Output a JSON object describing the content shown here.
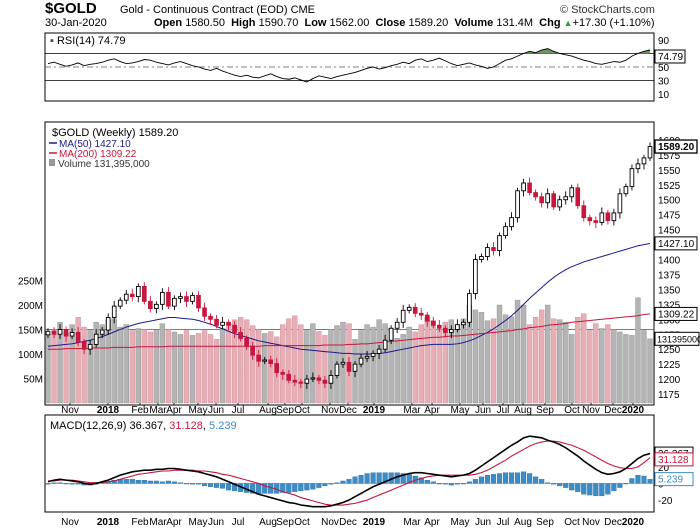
{
  "header": {
    "symbol": "$GOLD",
    "name": "Gold - Continuous Contract (EOD) CME",
    "copyright": "© StockCharts.com",
    "date": "30-Jan-2020",
    "open_label": "Open",
    "open": "1580.50",
    "high_label": "High",
    "high": "1590.70",
    "low_label": "Low",
    "low": "1562.00",
    "close_label": "Close",
    "close": "1589.20",
    "volume_label": "Volume",
    "volume": "131.4M",
    "chg_label": "Chg",
    "chg": "+17.30 (+1.10%)",
    "chg_arrow": "▲"
  },
  "rsi_panel": {
    "legend": "RSI(14) 74.79",
    "last_value_label": "74.79",
    "y_ticks": [
      "90",
      "70",
      "50",
      "30",
      "10"
    ]
  },
  "price_panel": {
    "legend_main": "$GOLD (Weekly) 1589.20",
    "legend_ma50": "MA(50) 1427.10",
    "legend_ma200": "MA(200) 1309.22",
    "legend_volume": "Volume 131,395,000",
    "y_ticks": [
      "1600",
      "1575",
      "1550",
      "1525",
      "1500",
      "1475",
      "1450",
      "1425",
      "1400",
      "1375",
      "1350",
      "1325",
      "1300",
      "1275",
      "1250",
      "1225",
      "1200",
      "1175"
    ],
    "volume_ticks": [
      "250M",
      "200M",
      "150M",
      "100M",
      "50M"
    ],
    "last_price_label": "1589.20",
    "ma50_label": "1427.10",
    "ma200_label": "1309.22",
    "volume_label": "131395000"
  },
  "macd_panel": {
    "legend_prefix": "MACD(12,26,9)",
    "legend_macd": "36.367",
    "legend_signal": "31.128",
    "legend_hist": "5.239",
    "macd_label": "36.367",
    "signal_label": "31.128",
    "hist_label": "5.239",
    "y_ticks": [
      "40",
      "20",
      "0",
      "-20"
    ]
  },
  "x_axis": {
    "labels": [
      "Nov",
      "2018",
      "Feb",
      "Mar",
      "Apr",
      "May",
      "Jun",
      "Jul",
      "Aug",
      "Sep",
      "Oct",
      "Nov",
      "Dec",
      "2019",
      "Mar",
      "Apr",
      "May",
      "Jun",
      "Jul",
      "Aug",
      "Sep",
      "Oct",
      "Nov",
      "Dec",
      "2020"
    ]
  },
  "colors": {
    "up": "#000000",
    "down": "#c8163e",
    "ma50": "#1a1a8c",
    "ma200": "#c8163e",
    "rsi_fill": "#5a8f4e",
    "macd_hist": "#3a8dc8",
    "vol_up": "#b4b4b4",
    "vol_down": "#e8aeb6"
  },
  "chart_data": [
    {
      "type": "line",
      "title": "RSI(14)",
      "ylim": [
        0,
        100
      ],
      "series": [
        {
          "name": "RSI(14)",
          "values": [
            55,
            57,
            54,
            51,
            53,
            56,
            52,
            54,
            55,
            57,
            60,
            62,
            58,
            55,
            56,
            58,
            61,
            60,
            57,
            55,
            53,
            56,
            58,
            55,
            52,
            50,
            47,
            45,
            48,
            44,
            41,
            38,
            36,
            38,
            35,
            34,
            37,
            40,
            36,
            33,
            32,
            34,
            31,
            28,
            33,
            37,
            35,
            33,
            36,
            38,
            40,
            42,
            45,
            48,
            50,
            47,
            49,
            52,
            54,
            57,
            55,
            60,
            62,
            58,
            60,
            63,
            59,
            55,
            52,
            54,
            56,
            53,
            51,
            48,
            50,
            55,
            60,
            62,
            66,
            70,
            73,
            71,
            75,
            77,
            73,
            70,
            68,
            66,
            63,
            60,
            58,
            55,
            54,
            56,
            58,
            57,
            60,
            66,
            70,
            73,
            75
          ]
        }
      ]
    },
    {
      "type": "line",
      "title": "$GOLD (Weekly)",
      "ylim": [
        1160,
        1620
      ],
      "series": [
        {
          "name": "Close",
          "values": [
            1280,
            1275,
            1283,
            1272,
            1278,
            1262,
            1250,
            1258,
            1275,
            1282,
            1303,
            1322,
            1332,
            1342,
            1338,
            1355,
            1330,
            1318,
            1325,
            1345,
            1322,
            1335,
            1338,
            1330,
            1340,
            1319,
            1305,
            1300,
            1290,
            1295,
            1290,
            1278,
            1268,
            1255,
            1240,
            1230,
            1232,
            1226,
            1211,
            1208,
            1198,
            1195,
            1193,
            1200,
            1202,
            1198,
            1193,
            1206,
            1225,
            1228,
            1213,
            1225,
            1235,
            1238,
            1243,
            1250,
            1265,
            1285,
            1295,
            1315,
            1320,
            1310,
            1307,
            1297,
            1290,
            1285,
            1278,
            1283,
            1291,
            1295,
            1343,
            1400,
            1405,
            1420,
            1415,
            1440,
            1455,
            1470,
            1515,
            1528,
            1512,
            1505,
            1495,
            1510,
            1488,
            1500,
            1505,
            1520,
            1490,
            1470,
            1465,
            1462,
            1478,
            1465,
            1478,
            1510,
            1522,
            1552,
            1560,
            1570,
            1589
          ]
        },
        {
          "name": "MA(50)",
          "values": [
            1255,
            1256,
            1257,
            1258,
            1259,
            1261,
            1263,
            1265,
            1268,
            1271,
            1275,
            1279,
            1283,
            1287,
            1290,
            1293,
            1295,
            1297,
            1299,
            1301,
            1303,
            1303,
            1302,
            1301,
            1300,
            1298,
            1295,
            1292,
            1288,
            1284,
            1280,
            1276,
            1273,
            1270,
            1267,
            1264,
            1262,
            1260,
            1258,
            1256,
            1254,
            1252,
            1250,
            1249,
            1248,
            1247,
            1246,
            1245,
            1244,
            1243,
            1243,
            1242,
            1242,
            1242,
            1242,
            1243,
            1244,
            1246,
            1248,
            1250,
            1252,
            1254,
            1256,
            1257,
            1258,
            1258,
            1258,
            1258,
            1259,
            1261,
            1264,
            1268,
            1273,
            1278,
            1284,
            1291,
            1298,
            1306,
            1315,
            1325,
            1335,
            1344,
            1353,
            1362,
            1370,
            1377,
            1383,
            1388,
            1392,
            1396,
            1399,
            1402,
            1405,
            1408,
            1411,
            1414,
            1417,
            1420,
            1423,
            1425,
            1427
          ]
        },
        {
          "name": "MA(200)",
          "values": [
            1250,
            1250,
            1250,
            1251,
            1251,
            1251,
            1251,
            1252,
            1252,
            1252,
            1252,
            1253,
            1253,
            1253,
            1253,
            1254,
            1254,
            1254,
            1254,
            1254,
            1255,
            1255,
            1255,
            1255,
            1255,
            1255,
            1255,
            1255,
            1255,
            1255,
            1255,
            1255,
            1255,
            1255,
            1255,
            1255,
            1256,
            1256,
            1256,
            1256,
            1256,
            1256,
            1256,
            1256,
            1256,
            1256,
            1257,
            1257,
            1257,
            1257,
            1258,
            1258,
            1259,
            1259,
            1260,
            1261,
            1262,
            1263,
            1264,
            1265,
            1266,
            1267,
            1268,
            1269,
            1270,
            1270,
            1271,
            1272,
            1272,
            1273,
            1274,
            1275,
            1276,
            1277,
            1278,
            1279,
            1280,
            1281,
            1283,
            1284,
            1286,
            1287,
            1288,
            1290,
            1291,
            1292,
            1293,
            1295,
            1296,
            1297,
            1298,
            1299,
            1300,
            1301,
            1302,
            1303,
            1304,
            1305,
            1306,
            1308,
            1309
          ]
        }
      ]
    },
    {
      "type": "bar",
      "title": "Volume",
      "ylim": [
        0,
        300
      ],
      "series": [
        {
          "name": "Volume (M)",
          "values": [
            140,
            150,
            165,
            145,
            160,
            175,
            155,
            148,
            165,
            160,
            170,
            172,
            155,
            160,
            148,
            152,
            150,
            145,
            148,
            162,
            150,
            145,
            140,
            148,
            138,
            142,
            148,
            140,
            130,
            152,
            162,
            170,
            175,
            170,
            158,
            150,
            142,
            146,
            135,
            160,
            172,
            178,
            160,
            148,
            162,
            146,
            138,
            150,
            158,
            165,
            162,
            130,
            148,
            160,
            155,
            170,
            162,
            152,
            132,
            140,
            155,
            145,
            160,
            175,
            168,
            150,
            165,
            170,
            160,
            172,
            200,
            190,
            185,
            168,
            172,
            200,
            180,
            176,
            210,
            200,
            160,
            175,
            190,
            200,
            172,
            170,
            165,
            140,
            175,
            182,
            148,
            162,
            152,
            160,
            150,
            145,
            140,
            138,
            215,
            148,
            131
          ]
        }
      ]
    },
    {
      "type": "line",
      "title": "MACD(12,26,9)",
      "ylim": [
        -32,
        62
      ],
      "series": [
        {
          "name": "MACD",
          "values": [
            2,
            4,
            5,
            4,
            3,
            2,
            0,
            -1,
            0,
            2,
            4,
            7,
            10,
            12,
            14,
            15,
            16,
            16,
            17,
            17,
            18,
            18,
            17,
            16,
            15,
            14,
            12,
            10,
            8,
            5,
            2,
            -1,
            -4,
            -7,
            -10,
            -13,
            -15,
            -17,
            -19,
            -21,
            -23,
            -24,
            -26,
            -27,
            -28,
            -28,
            -28,
            -27,
            -25,
            -23,
            -20,
            -16,
            -12,
            -8,
            -4,
            -1,
            2,
            5,
            8,
            10,
            12,
            13,
            13,
            12,
            11,
            10,
            9,
            8,
            9,
            10,
            12,
            16,
            21,
            26,
            31,
            36,
            41,
            46,
            50,
            55,
            57,
            56,
            55,
            52,
            50,
            47,
            43,
            38,
            33,
            27,
            22,
            17,
            13,
            11,
            12,
            14,
            18,
            24,
            30,
            34,
            36
          ]
        },
        {
          "name": "Signal",
          "values": [
            3,
            3,
            4,
            4,
            4,
            3,
            2,
            1,
            1,
            1,
            2,
            3,
            5,
            7,
            9,
            11,
            12,
            13,
            14,
            15,
            15,
            16,
            16,
            16,
            16,
            15,
            15,
            14,
            13,
            11,
            10,
            8,
            6,
            4,
            2,
            0,
            -3,
            -5,
            -7,
            -10,
            -12,
            -14,
            -17,
            -19,
            -21,
            -23,
            -25,
            -26,
            -26,
            -26,
            -25,
            -24,
            -22,
            -20,
            -17,
            -14,
            -11,
            -8,
            -5,
            -2,
            1,
            4,
            6,
            8,
            9,
            10,
            10,
            10,
            10,
            10,
            10,
            11,
            13,
            16,
            20,
            24,
            28,
            33,
            37,
            41,
            45,
            48,
            50,
            51,
            51,
            50,
            48,
            46,
            43,
            40,
            36,
            32,
            28,
            24,
            21,
            19,
            18,
            18,
            20,
            25,
            31
          ]
        }
      ]
    }
  ]
}
